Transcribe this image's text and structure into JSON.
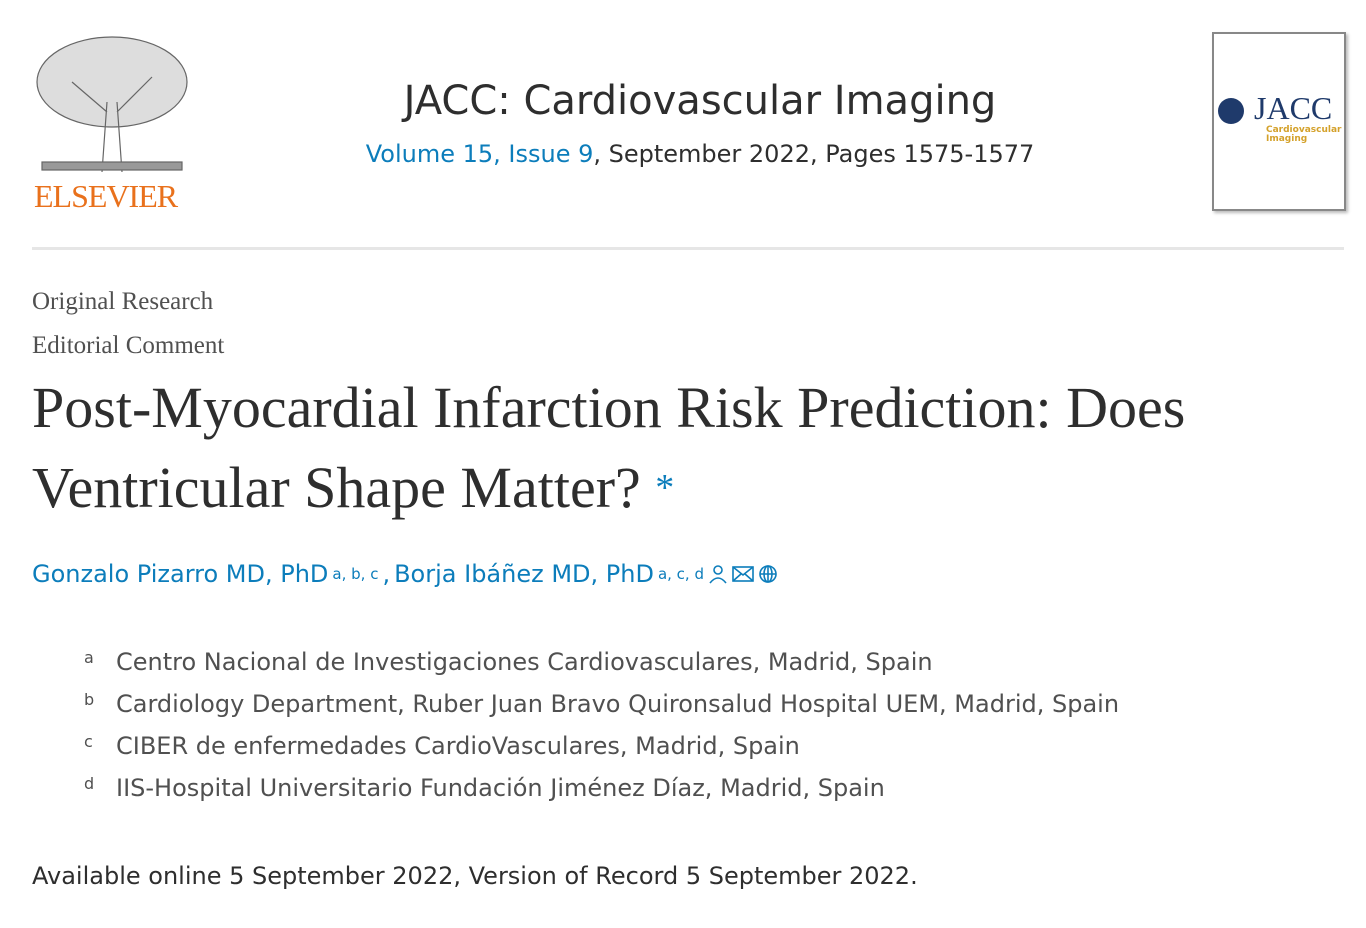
{
  "publisher": {
    "logo_text": "ELSEVIER",
    "logo_color": "#e9711c"
  },
  "journal": {
    "title": "JACC: Cardiovascular Imaging",
    "volume_issue": "Volume 15, Issue 9",
    "date_pages": ", September 2022, Pages 1575-1577",
    "cover": {
      "brand": "JACC",
      "subtitle_line1": "Cardiovascular",
      "subtitle_line2": "Imaging"
    }
  },
  "article": {
    "type1": "Original Research",
    "type2": "Editorial Comment",
    "title": "Post-Myocardial Infarction Risk Prediction: Does Ventricular Shape Matter?",
    "title_note": "*",
    "authors": [
      {
        "name": "Gonzalo Pizarro MD, PhD",
        "sup": "a, b, c",
        "sep": ","
      },
      {
        "name": "Borja Ibáñez MD, PhD",
        "sup": "a, c, d"
      }
    ],
    "author_icons": [
      "person-icon",
      "envelope-icon",
      "globe-icon"
    ],
    "affiliations": [
      {
        "label": "a",
        "text": "Centro Nacional de Investigaciones Cardiovasculares, Madrid, Spain"
      },
      {
        "label": "b",
        "text": "Cardiology Department, Ruber Juan Bravo Quironsalud Hospital UEM, Madrid, Spain"
      },
      {
        "label": "c",
        "text": "CIBER de enfermedades CardioVasculares, Madrid, Spain"
      },
      {
        "label": "d",
        "text": "IIS-Hospital Universitario Fundación Jiménez Díaz, Madrid, Spain"
      }
    ],
    "availability": "Available online 5 September 2022, Version of Record 5 September 2022."
  },
  "colors": {
    "link": "#0c7dbb"
  }
}
